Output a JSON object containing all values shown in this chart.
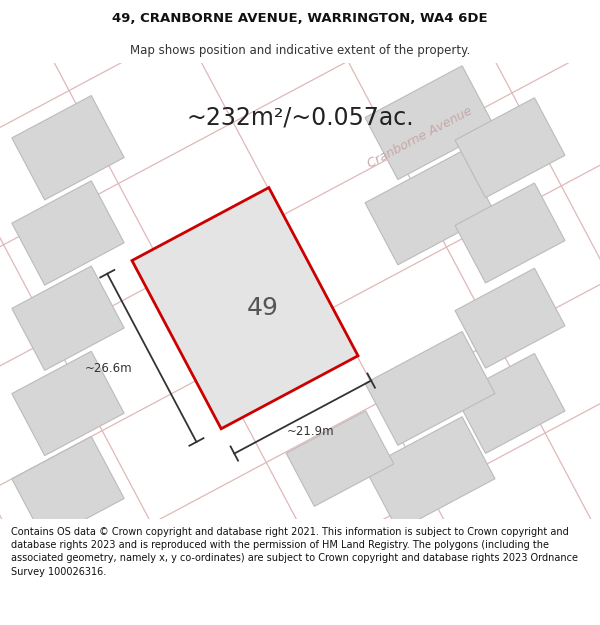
{
  "title_line1": "49, CRANBORNE AVENUE, WARRINGTON, WA4 6DE",
  "title_line2": "Map shows position and indicative extent of the property.",
  "area_text": "~232m²/~0.057ac.",
  "house_number": "49",
  "dim_width": "~21.9m",
  "dim_height": "~26.6m",
  "street_label": "Cranborne Avenue",
  "footer_text": "Contains OS data © Crown copyright and database right 2021. This information is subject to Crown copyright and database rights 2023 and is reproduced with the permission of HM Land Registry. The polygons (including the associated geometry, namely x, y co-ordinates) are subject to Crown copyright and database rights 2023 Ordnance Survey 100026316.",
  "map_bg": "#eeecec",
  "highlight_color": "#cc0000",
  "neighbor_fc": "#d6d6d6",
  "neighbor_ec": "#bbbbbb",
  "road_line_color": "#e0b8b8",
  "street_text_color": "#c8a8a8",
  "dim_color": "#333333",
  "title_fontsize": 9.5,
  "subtitle_fontsize": 8.5,
  "area_fontsize": 17,
  "number_fontsize": 18,
  "dim_fontsize": 8.5,
  "street_fontsize": 9,
  "footer_fontsize": 7.0
}
